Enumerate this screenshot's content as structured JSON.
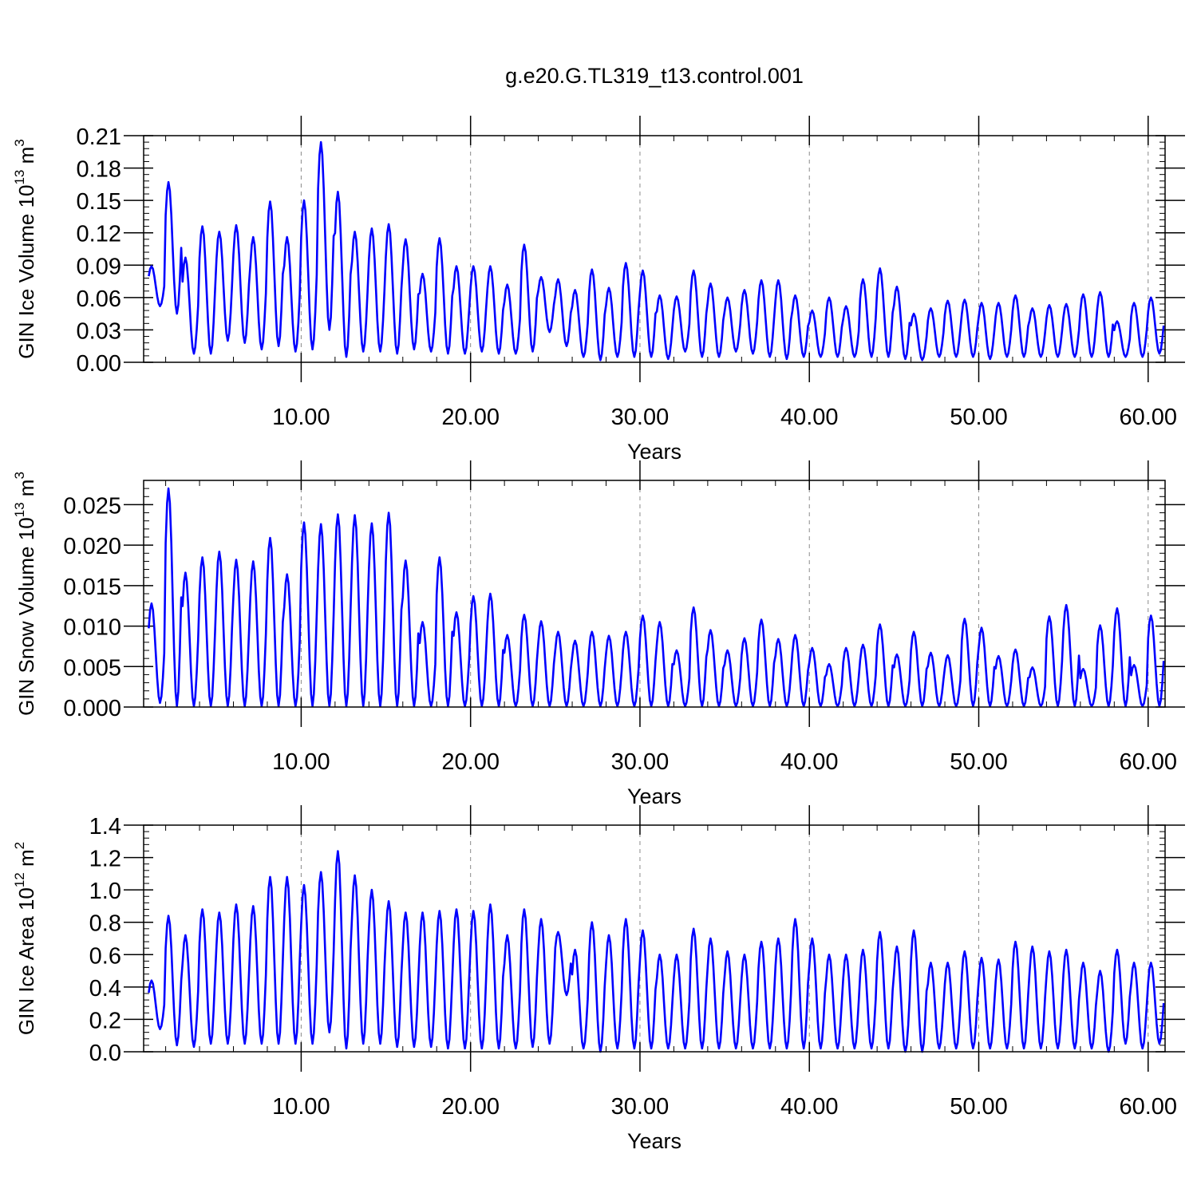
{
  "title": "g.e20.G.TL319_t13.control.001",
  "line_color": "#0000ff",
  "chart_data": [
    {
      "type": "line",
      "ylabel": "GIN Ice Volume 10",
      "ylabel_exp": "13",
      "ylabel_unit": " m",
      "ylabel_unit_exp": "3",
      "xlabel": "Years",
      "xlim": [
        0.7,
        61.0
      ],
      "ylim": [
        0.0,
        0.21
      ],
      "yticks": [
        0.0,
        0.03,
        0.06,
        0.09,
        0.12,
        0.15,
        0.18,
        0.21
      ],
      "ytick_labels": [
        "0.00",
        "0.03",
        "0.06",
        "0.09",
        "0.12",
        "0.15",
        "0.18",
        "0.21"
      ],
      "xticks": [
        10,
        20,
        30,
        40,
        50,
        60
      ],
      "xtick_labels": [
        "10.00",
        "20.00",
        "30.00",
        "40.00",
        "50.00",
        "60.00"
      ],
      "grid": "vertical-dashed",
      "annual_peaks": [
        0.089,
        0.167,
        0.097,
        0.126,
        0.121,
        0.127,
        0.116,
        0.149,
        0.116,
        0.15,
        0.204,
        0.158,
        0.121,
        0.124,
        0.128,
        0.114,
        0.082,
        0.115,
        0.089,
        0.089,
        0.089,
        0.072,
        0.109,
        0.079,
        0.077,
        0.067,
        0.086,
        0.069,
        0.092,
        0.085,
        0.062,
        0.061,
        0.085,
        0.073,
        0.06,
        0.067,
        0.076,
        0.076,
        0.062,
        0.048,
        0.06,
        0.052,
        0.077,
        0.087,
        0.07,
        0.045,
        0.05,
        0.057,
        0.058,
        0.055,
        0.055,
        0.062,
        0.05,
        0.053,
        0.054,
        0.063,
        0.065,
        0.038,
        0.055,
        0.06
      ],
      "annual_troughs": [
        0.052,
        0.045,
        0.008,
        0.008,
        0.02,
        0.018,
        0.012,
        0.015,
        0.01,
        0.012,
        0.03,
        0.005,
        0.01,
        0.01,
        0.008,
        0.012,
        0.01,
        0.008,
        0.008,
        0.01,
        0.008,
        0.008,
        0.01,
        0.028,
        0.015,
        0.005,
        0.002,
        0.005,
        0.005,
        0.005,
        0.003,
        0.01,
        0.005,
        0.005,
        0.01,
        0.008,
        0.005,
        0.003,
        0.005,
        0.005,
        0.005,
        0.005,
        0.005,
        0.005,
        0.003,
        0.002,
        0.005,
        0.005,
        0.005,
        0.003,
        0.005,
        0.005,
        0.005,
        0.005,
        0.005,
        0.005,
        0.005,
        0.005,
        0.005,
        0.008
      ]
    },
    {
      "type": "line",
      "ylabel": "GIN Snow Volume 10",
      "ylabel_exp": "13",
      "ylabel_unit": " m",
      "ylabel_unit_exp": "3",
      "xlabel": "Years",
      "xlim": [
        0.7,
        61.0
      ],
      "ylim": [
        0.0,
        0.028
      ],
      "yticks": [
        0.0,
        0.005,
        0.01,
        0.015,
        0.02,
        0.025
      ],
      "ytick_labels": [
        "0.000",
        "0.005",
        "0.010",
        "0.015",
        "0.020",
        "0.025"
      ],
      "xticks": [
        10,
        20,
        30,
        40,
        50,
        60
      ],
      "xtick_labels": [
        "10.00",
        "20.00",
        "30.00",
        "40.00",
        "50.00",
        "60.00"
      ],
      "grid": "vertical-dashed",
      "annual_peaks": [
        0.0128,
        0.027,
        0.0166,
        0.0185,
        0.0192,
        0.0182,
        0.018,
        0.0209,
        0.0164,
        0.0228,
        0.0226,
        0.0238,
        0.0237,
        0.0227,
        0.024,
        0.0181,
        0.0105,
        0.0185,
        0.0117,
        0.0137,
        0.014,
        0.0089,
        0.0114,
        0.0106,
        0.0093,
        0.0082,
        0.0093,
        0.0088,
        0.0093,
        0.0113,
        0.0105,
        0.007,
        0.0123,
        0.0095,
        0.007,
        0.0085,
        0.0108,
        0.0084,
        0.0089,
        0.0073,
        0.0053,
        0.0073,
        0.0077,
        0.0102,
        0.0065,
        0.0093,
        0.0067,
        0.0064,
        0.0109,
        0.0098,
        0.0063,
        0.0071,
        0.0049,
        0.0112,
        0.0126,
        0.0047,
        0.0101,
        0.0122,
        0.0052,
        0.0113
      ],
      "annual_troughs": [
        0.0005,
        0.0001,
        0.0001,
        0.0001,
        0.0001,
        0.0001,
        0.0001,
        0.0001,
        0.0001,
        0.0001,
        0.0001,
        0.0001,
        0.0001,
        0.0001,
        0.0001,
        0.0001,
        0.0001,
        0.0001,
        0.0001,
        0.0001,
        0.0001,
        0.0001,
        0.0001,
        0.0001,
        0.0001,
        0.0001,
        0.0001,
        0.0001,
        0.0001,
        0.0001,
        0.0001,
        0.0001,
        0.0001,
        0.0001,
        0.0001,
        0.0001,
        0.0001,
        0.0001,
        0.0001,
        0.0001,
        0.0001,
        0.0001,
        0.0001,
        0.0001,
        0.0001,
        0.0001,
        0.0001,
        0.0001,
        0.0001,
        0.0001,
        0.0001,
        0.0001,
        0.0001,
        0.0001,
        0.0001,
        0.0001,
        0.0001,
        0.0001,
        0.0001,
        0.0001
      ]
    },
    {
      "type": "line",
      "ylabel": "GIN Ice Area 10",
      "ylabel_exp": "12",
      "ylabel_unit": " m",
      "ylabel_unit_exp": "2",
      "xlabel": "Years",
      "xlim": [
        0.7,
        61.0
      ],
      "ylim": [
        0.0,
        1.4
      ],
      "yticks": [
        0.0,
        0.2,
        0.4,
        0.6,
        0.8,
        1.0,
        1.2,
        1.4
      ],
      "ytick_labels": [
        "0.0",
        "0.2",
        "0.4",
        "0.6",
        "0.8",
        "1.0",
        "1.2",
        "1.4"
      ],
      "xticks": [
        10,
        20,
        30,
        40,
        50,
        60
      ],
      "xtick_labels": [
        "10.00",
        "20.00",
        "30.00",
        "40.00",
        "50.00",
        "60.00"
      ],
      "grid": "vertical-dashed",
      "annual_peaks": [
        0.44,
        0.84,
        0.72,
        0.88,
        0.86,
        0.91,
        0.9,
        1.08,
        1.08,
        1.03,
        1.11,
        1.24,
        1.09,
        1.0,
        0.93,
        0.86,
        0.86,
        0.87,
        0.88,
        0.87,
        0.91,
        0.72,
        0.88,
        0.82,
        0.74,
        0.63,
        0.8,
        0.72,
        0.82,
        0.75,
        0.6,
        0.6,
        0.76,
        0.7,
        0.62,
        0.6,
        0.68,
        0.7,
        0.82,
        0.7,
        0.6,
        0.6,
        0.63,
        0.74,
        0.65,
        0.75,
        0.55,
        0.55,
        0.62,
        0.58,
        0.57,
        0.68,
        0.65,
        0.62,
        0.63,
        0.55,
        0.5,
        0.63,
        0.55,
        0.55
      ],
      "annual_troughs": [
        0.14,
        0.04,
        0.03,
        0.05,
        0.05,
        0.05,
        0.05,
        0.05,
        0.05,
        0.05,
        0.12,
        0.02,
        0.05,
        0.05,
        0.03,
        0.03,
        0.03,
        0.02,
        0.02,
        0.02,
        0.02,
        0.02,
        0.03,
        0.05,
        0.35,
        0.02,
        0.0,
        0.02,
        0.02,
        0.02,
        0.02,
        0.02,
        0.02,
        0.02,
        0.02,
        0.02,
        0.02,
        0.02,
        0.02,
        0.02,
        0.02,
        0.02,
        0.02,
        0.02,
        0.0,
        0.0,
        0.02,
        0.02,
        0.02,
        0.02,
        0.02,
        0.02,
        0.02,
        0.02,
        0.02,
        0.02,
        0.0,
        0.05,
        0.02,
        0.05
      ]
    }
  ]
}
